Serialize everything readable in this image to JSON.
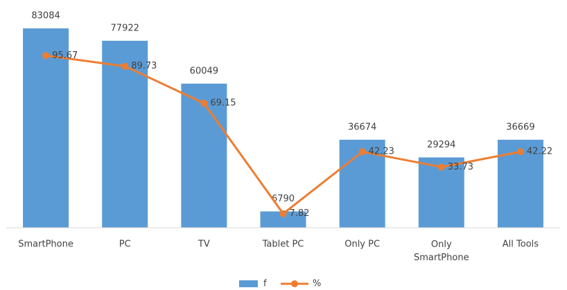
{
  "chart_data": {
    "type": "bar-line",
    "categories": [
      "SmartPhone",
      "PC",
      "TV",
      "Tablet PC",
      "Only PC",
      "Only SmartPhone",
      "All Tools"
    ],
    "series": [
      {
        "name": "f",
        "type": "bar",
        "color": "#5b9bd5",
        "values": [
          83084,
          77922,
          60049,
          6790,
          36674,
          29294,
          36669
        ]
      },
      {
        "name": "%",
        "type": "line",
        "axis": "y2",
        "color": "#ed7d31",
        "values": [
          95.67,
          89.73,
          69.15,
          7.82,
          42.23,
          33.73,
          42.22
        ]
      }
    ],
    "ylim": [
      0,
      90000
    ],
    "y2lim": [
      0,
      120
    ],
    "legend": "bottom"
  }
}
